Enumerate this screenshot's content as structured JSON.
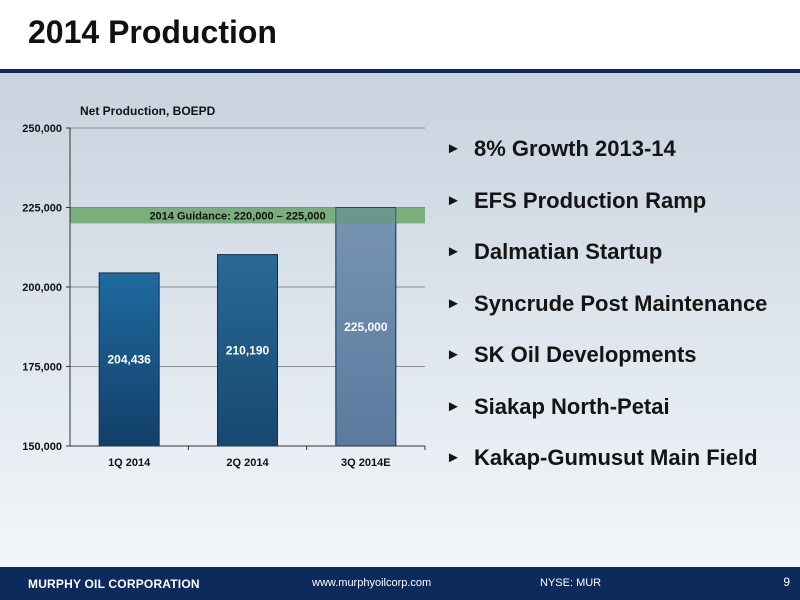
{
  "slide": {
    "title": "2014 Production",
    "bullets": [
      "8% Growth 2013-14",
      "EFS Production Ramp",
      "Dalmatian Startup",
      "Syncrude Post Maintenance",
      "SK Oil Developments",
      "Siakap North-Petai",
      "Kakap-Gumusut Main Field"
    ],
    "bullet_icon": "right-triangle-bullet",
    "footer": {
      "company": "MURPHY OIL CORPORATION",
      "url": "www.murphyoilcorp.com",
      "ticker": "NYSE: MUR",
      "page": "9"
    },
    "colors": {
      "navy": "#0d2a5c",
      "bar_dark": "#1b5787",
      "bar_light": "#6e8faf",
      "guidance_band": "#5aa05a"
    }
  },
  "chart_data": {
    "type": "bar",
    "title": "Net Production, BOEPD",
    "ylabel": "",
    "xlabel": "",
    "categories": [
      "1Q 2014",
      "2Q 2014",
      "3Q 2014E"
    ],
    "values": [
      204436,
      210190,
      225000
    ],
    "labels": [
      "204,436",
      "210,190",
      "225,000"
    ],
    "ylim": [
      150000,
      250000
    ],
    "yticks": [
      150000,
      175000,
      200000,
      225000,
      250000
    ],
    "ytick_labels": [
      "150,000",
      "175,000",
      "200,000",
      "225,000",
      "250,000"
    ],
    "grid": true,
    "band": {
      "label": "2014 Guidance: 220,000 – 225,000",
      "from": 220000,
      "to": 225000
    }
  }
}
